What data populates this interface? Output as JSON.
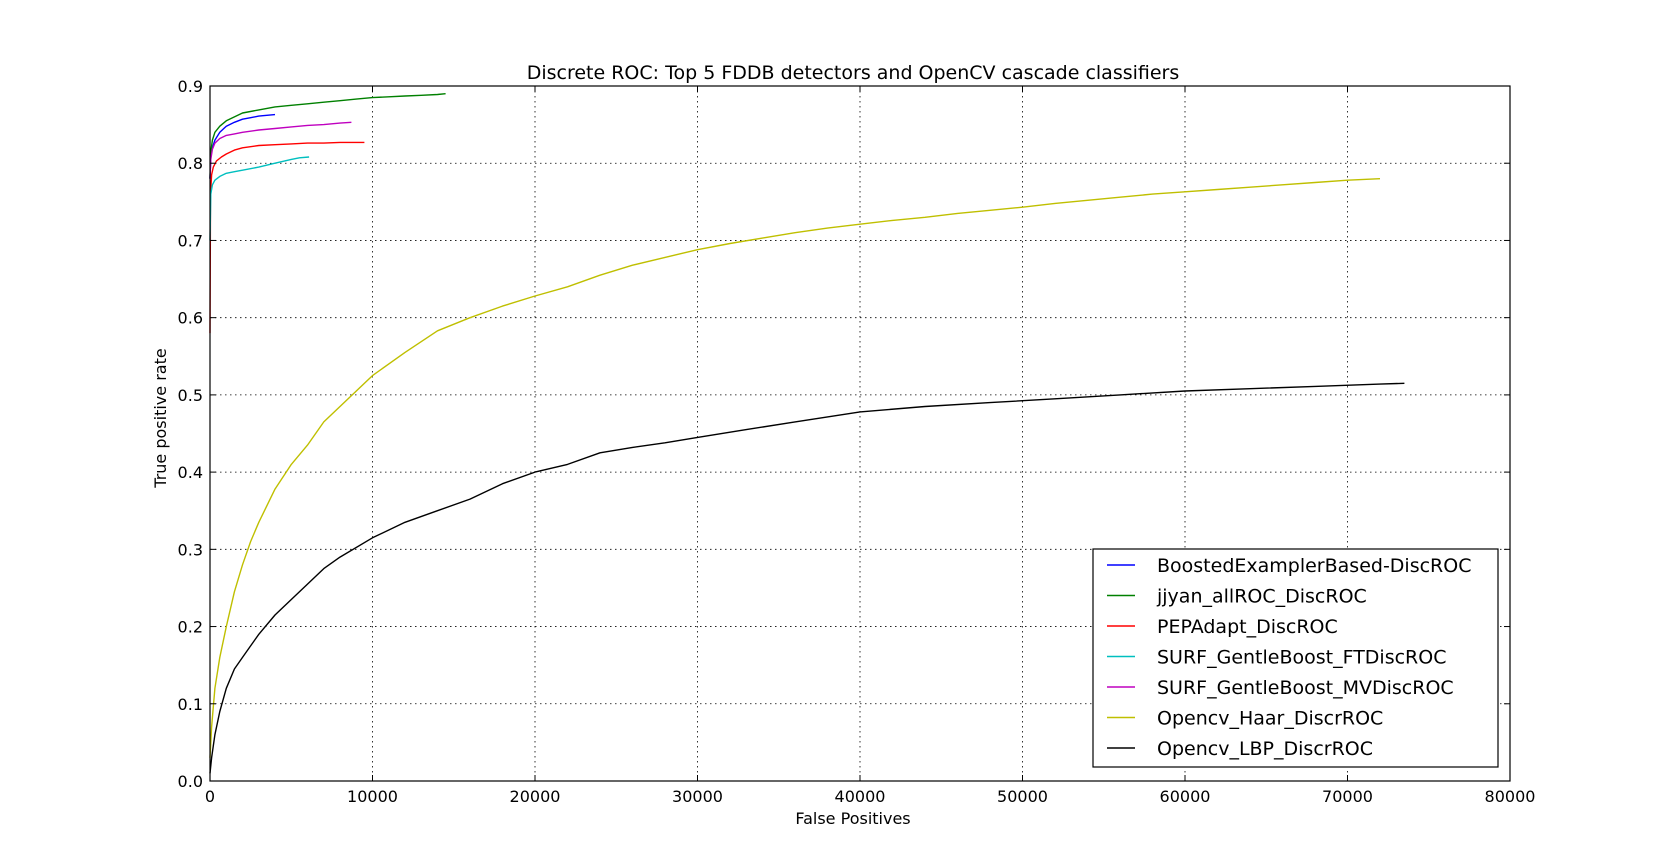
{
  "chart_data": {
    "type": "line",
    "title": "Discrete ROC: Top 5 FDDB detectors and OpenCV cascade classifiers",
    "xlabel": "False Positives",
    "ylabel": "True positive rate",
    "xlim": [
      0,
      80000
    ],
    "ylim": [
      0,
      0.9
    ],
    "xticks": [
      0,
      10000,
      20000,
      30000,
      40000,
      50000,
      60000,
      70000,
      80000
    ],
    "yticks": [
      0.0,
      0.1,
      0.2,
      0.3,
      0.4,
      0.5,
      0.6,
      0.7,
      0.8,
      0.9
    ],
    "xtick_labels": [
      "0",
      "10000",
      "20000",
      "30000",
      "40000",
      "50000",
      "60000",
      "70000",
      "80000"
    ],
    "ytick_labels": [
      "0.0",
      "0.1",
      "0.2",
      "0.3",
      "0.4",
      "0.5",
      "0.6",
      "0.7",
      "0.8",
      "0.9"
    ],
    "grid": true,
    "legend_position": "lower-right",
    "series": [
      {
        "name": "BoostedExamplerBased-DiscROC",
        "color": "#0000ff",
        "x": [
          0,
          50,
          150,
          300,
          600,
          1000,
          1500,
          2000,
          2500,
          3000,
          3500,
          4000
        ],
        "y": [
          0.78,
          0.81,
          0.82,
          0.83,
          0.84,
          0.848,
          0.853,
          0.857,
          0.859,
          0.861,
          0.862,
          0.863
        ]
      },
      {
        "name": "jjyan_allROC_DiscROC",
        "color": "#008000",
        "x": [
          0,
          50,
          150,
          300,
          600,
          1000,
          1500,
          2000,
          3000,
          4000,
          5000,
          6000,
          7000,
          8000,
          9000,
          10000,
          11000,
          12000,
          13000,
          14000,
          14500
        ],
        "y": [
          0.78,
          0.815,
          0.83,
          0.84,
          0.848,
          0.855,
          0.86,
          0.865,
          0.869,
          0.873,
          0.875,
          0.877,
          0.879,
          0.881,
          0.883,
          0.885,
          0.886,
          0.887,
          0.888,
          0.889,
          0.89
        ]
      },
      {
        "name": "PEPAdapt_DiscROC",
        "color": "#ff0000",
        "x": [
          0,
          30,
          100,
          200,
          400,
          700,
          1000,
          1500,
          2000,
          3000,
          4000,
          5000,
          6000,
          7000,
          8000,
          9000,
          9500
        ],
        "y": [
          0.58,
          0.76,
          0.785,
          0.795,
          0.803,
          0.808,
          0.812,
          0.817,
          0.82,
          0.823,
          0.824,
          0.825,
          0.826,
          0.826,
          0.827,
          0.827,
          0.827
        ]
      },
      {
        "name": "SURF_GentleBoost_FTDiscROC",
        "color": "#00bfbf",
        "x": [
          0,
          50,
          150,
          300,
          600,
          1000,
          1500,
          2000,
          3000,
          4000,
          5000,
          5500,
          6100
        ],
        "y": [
          0.7,
          0.76,
          0.772,
          0.778,
          0.783,
          0.787,
          0.789,
          0.791,
          0.795,
          0.8,
          0.805,
          0.807,
          0.808
        ]
      },
      {
        "name": "SURF_GentleBoost_MVDiscROC",
        "color": "#bf00bf",
        "x": [
          0,
          50,
          150,
          300,
          600,
          1000,
          1500,
          2000,
          3000,
          4000,
          5000,
          6000,
          7000,
          8000,
          8700
        ],
        "y": [
          0.78,
          0.805,
          0.818,
          0.826,
          0.832,
          0.836,
          0.838,
          0.84,
          0.843,
          0.845,
          0.847,
          0.849,
          0.85,
          0.852,
          0.853
        ]
      },
      {
        "name": "Opencv_Haar_DiscrROC",
        "color": "#bfbf00",
        "x": [
          0,
          100,
          300,
          600,
          1000,
          1500,
          2000,
          2500,
          3000,
          4000,
          5000,
          6000,
          7000,
          8000,
          9000,
          10000,
          12000,
          14000,
          16000,
          18000,
          20000,
          22000,
          24000,
          26000,
          28000,
          30000,
          32000,
          34000,
          36000,
          38000,
          40000,
          42000,
          44000,
          46000,
          48000,
          50000,
          52000,
          54000,
          56000,
          58000,
          60000,
          62000,
          64000,
          66000,
          68000,
          70000,
          72000
        ],
        "y": [
          0.03,
          0.07,
          0.12,
          0.16,
          0.2,
          0.245,
          0.28,
          0.31,
          0.335,
          0.378,
          0.41,
          0.435,
          0.465,
          0.485,
          0.505,
          0.525,
          0.555,
          0.583,
          0.6,
          0.615,
          0.628,
          0.64,
          0.655,
          0.668,
          0.678,
          0.688,
          0.696,
          0.703,
          0.71,
          0.716,
          0.721,
          0.726,
          0.73,
          0.735,
          0.739,
          0.743,
          0.748,
          0.752,
          0.756,
          0.76,
          0.763,
          0.766,
          0.769,
          0.772,
          0.775,
          0.778,
          0.78
        ]
      },
      {
        "name": "Opencv_LBP_DiscrROC",
        "color": "#000000",
        "x": [
          0,
          100,
          300,
          600,
          1000,
          1500,
          2000,
          2500,
          3000,
          4000,
          5000,
          6000,
          7000,
          8000,
          10000,
          12000,
          14000,
          16000,
          18000,
          20000,
          22000,
          24000,
          26000,
          28000,
          30000,
          33000,
          36000,
          40000,
          44000,
          48000,
          52000,
          56000,
          60000,
          64000,
          68000,
          72000,
          73500
        ],
        "y": [
          0.01,
          0.03,
          0.06,
          0.09,
          0.12,
          0.145,
          0.16,
          0.175,
          0.19,
          0.215,
          0.235,
          0.255,
          0.275,
          0.29,
          0.315,
          0.335,
          0.35,
          0.365,
          0.385,
          0.4,
          0.41,
          0.425,
          0.432,
          0.438,
          0.445,
          0.455,
          0.465,
          0.478,
          0.485,
          0.49,
          0.495,
          0.5,
          0.505,
          0.508,
          0.511,
          0.514,
          0.515
        ]
      }
    ]
  }
}
